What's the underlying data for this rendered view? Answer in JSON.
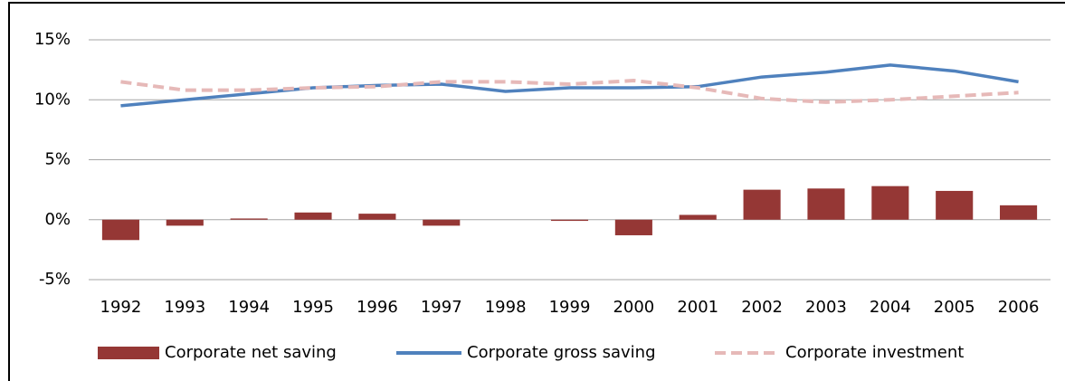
{
  "chart_data": {
    "type": "bar",
    "categories": [
      "1992",
      "1993",
      "1994",
      "1995",
      "1996",
      "1997",
      "1998",
      "1999",
      "2000",
      "2001",
      "2002",
      "2003",
      "2004",
      "2005",
      "2006"
    ],
    "series": [
      {
        "name": "Corporate net saving",
        "type": "bar",
        "color": "#953735",
        "values": [
          -1.7,
          -0.5,
          0.1,
          0.6,
          0.5,
          -0.5,
          0,
          -0.1,
          -1.3,
          0.4,
          2.5,
          2.6,
          2.8,
          2.4,
          1.2
        ]
      },
      {
        "name": "Corporate gross saving",
        "type": "line",
        "color": "#4f81bd",
        "values": [
          9.5,
          10.0,
          10.5,
          11.0,
          11.2,
          11.3,
          10.7,
          11.0,
          11.0,
          11.1,
          11.9,
          12.3,
          12.9,
          12.4,
          11.5
        ]
      },
      {
        "name": "Corporate investment",
        "type": "line",
        "dashed": true,
        "color": "#e6b9b8",
        "values": [
          11.5,
          10.8,
          10.8,
          11.0,
          11.1,
          11.5,
          11.5,
          11.3,
          11.6,
          11.0,
          10.1,
          9.8,
          10.0,
          10.3,
          10.6
        ]
      }
    ],
    "ylim": [
      -5,
      15
    ],
    "yticks": [
      {
        "value": -5,
        "label": "-5%"
      },
      {
        "value": 0,
        "label": "0%"
      },
      {
        "value": 5,
        "label": "5%"
      },
      {
        "value": 10,
        "label": "10%"
      },
      {
        "value": 15,
        "label": "15%"
      }
    ],
    "grid": true,
    "legend": "bottom"
  }
}
